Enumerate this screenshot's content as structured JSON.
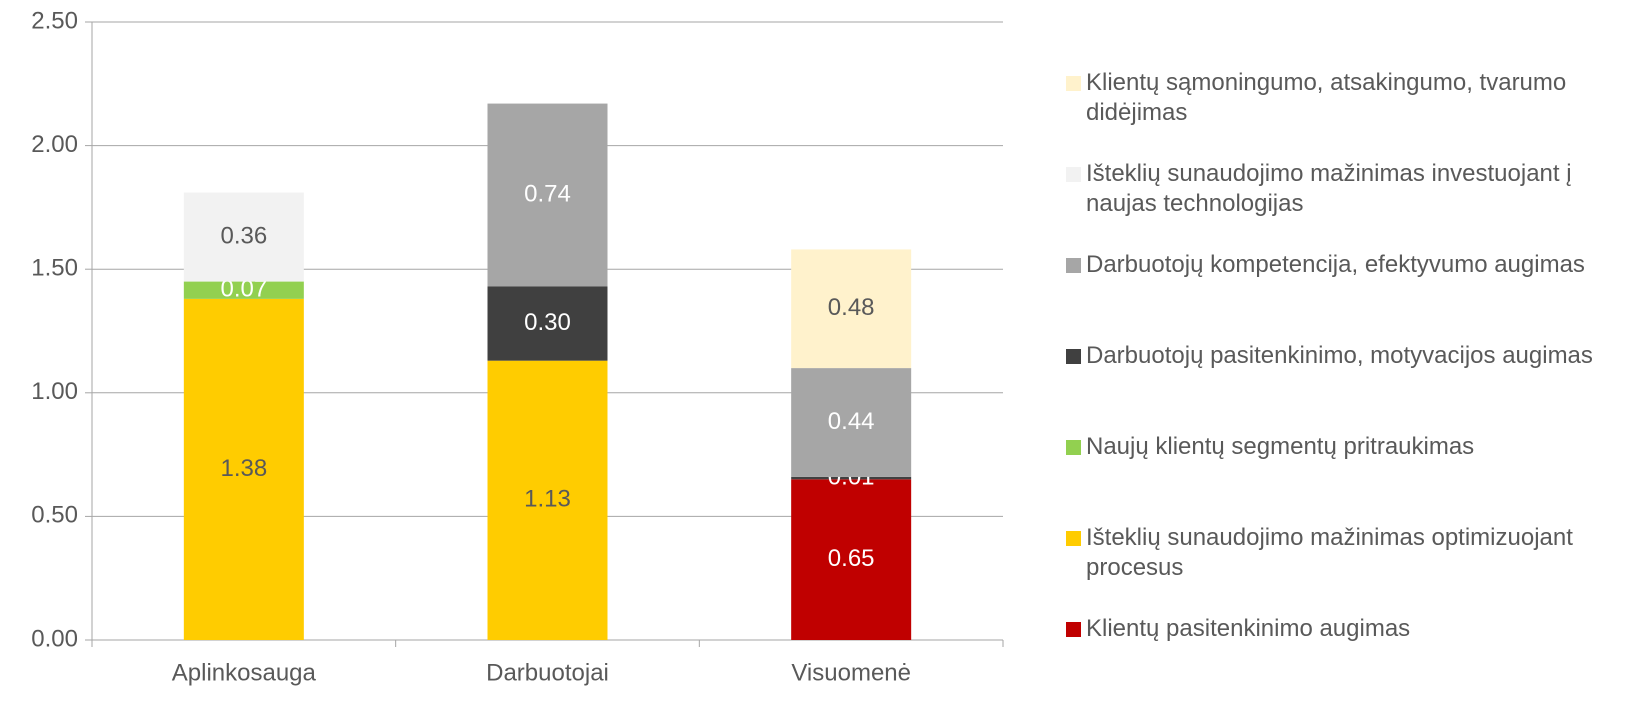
{
  "chart_data": {
    "type": "stacked_bar",
    "categories": [
      "Aplinkosauga",
      "Darbuotojai",
      "Visuomenė"
    ],
    "series": [
      {
        "name": "Klientų pasitenkinimo augimas",
        "color": "#c00000",
        "values": [
          null,
          null,
          0.65
        ],
        "value_labels": [
          null,
          null,
          "0.65"
        ]
      },
      {
        "name": "Išteklių sunaudojimo mažinimas optimizuojant procesus",
        "color": "#ffcc00",
        "values": [
          1.38,
          1.13,
          null
        ],
        "value_labels": [
          "1.38",
          "1.13",
          null
        ]
      },
      {
        "name": "Naujų klientų segmentų pritraukimas",
        "color": "#92d050",
        "values": [
          0.07,
          null,
          null
        ],
        "value_labels": [
          "0.07",
          null,
          null
        ]
      },
      {
        "name": "Darbuotojų pasitenkinimo, motyvacijos augimas",
        "color": "#404040",
        "values": [
          null,
          0.3,
          0.01
        ],
        "value_labels": [
          null,
          "0.30",
          "0.01"
        ]
      },
      {
        "name": "Darbuotojų kompetencija, efektyvumo augimas",
        "color": "#a6a6a6",
        "values": [
          null,
          0.74,
          0.44
        ],
        "value_labels": [
          null,
          "0.74",
          "0.44"
        ]
      },
      {
        "name": "Išteklių sunaudojimo mažinimas investuojant į naujas technologijas",
        "color": "#f2f2f2",
        "values": [
          0.36,
          null,
          null
        ],
        "value_labels": [
          "0.36",
          null,
          null
        ]
      },
      {
        "name": "Klientų sąmoningumo, atsakingumo, tvarumo didėjimas",
        "color": "#fff2cc",
        "values": [
          null,
          null,
          0.48
        ],
        "value_labels": [
          null,
          null,
          "0.48"
        ]
      }
    ],
    "ylim": [
      0,
      2.5
    ],
    "yticks": [
      {
        "value": 0,
        "label": "0.00"
      },
      {
        "value": 0.5,
        "label": "0.50"
      },
      {
        "value": 1,
        "label": "1.00"
      },
      {
        "value": 1.5,
        "label": "1.50"
      },
      {
        "value": 2,
        "label": "2.00"
      },
      {
        "value": 2.5,
        "label": "2.50"
      }
    ],
    "grid": true,
    "legend": "right"
  }
}
